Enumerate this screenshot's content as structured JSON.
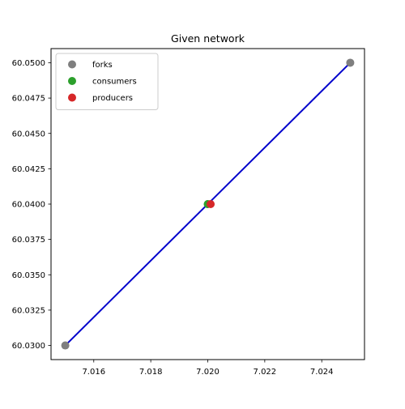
{
  "chart_data": {
    "type": "scatter",
    "title": "Given network",
    "xlabel": "",
    "ylabel": "",
    "xlim": [
      7.0145,
      7.0255
    ],
    "ylim": [
      60.029,
      60.051
    ],
    "x_ticks": [
      7.016,
      7.018,
      7.02,
      7.022,
      7.024
    ],
    "x_tick_labels": [
      "7.016",
      "7.018",
      "7.020",
      "7.022",
      "7.024"
    ],
    "y_ticks": [
      60.03,
      60.0325,
      60.035,
      60.0375,
      60.04,
      60.0425,
      60.045,
      60.0475,
      60.05
    ],
    "y_tick_labels": [
      "60.0300",
      "60.0325",
      "60.0350",
      "60.0375",
      "60.0400",
      "60.0425",
      "60.0450",
      "60.0475",
      "60.0500"
    ],
    "grid": false,
    "legend_position": "top-left",
    "edges": [
      {
        "x": [
          7.015,
          7.025
        ],
        "y": [
          60.03,
          60.05
        ],
        "color": "#0000cc"
      }
    ],
    "series": [
      {
        "name": "forks",
        "color": "#7f7f7f",
        "points": [
          {
            "x": 7.015,
            "y": 60.03
          },
          {
            "x": 7.025,
            "y": 60.05
          }
        ]
      },
      {
        "name": "consumers",
        "color": "#2ca02c",
        "points": [
          {
            "x": 7.02,
            "y": 60.04
          }
        ]
      },
      {
        "name": "producers",
        "color": "#d62728",
        "points": [
          {
            "x": 7.0201,
            "y": 60.04
          }
        ]
      }
    ]
  }
}
